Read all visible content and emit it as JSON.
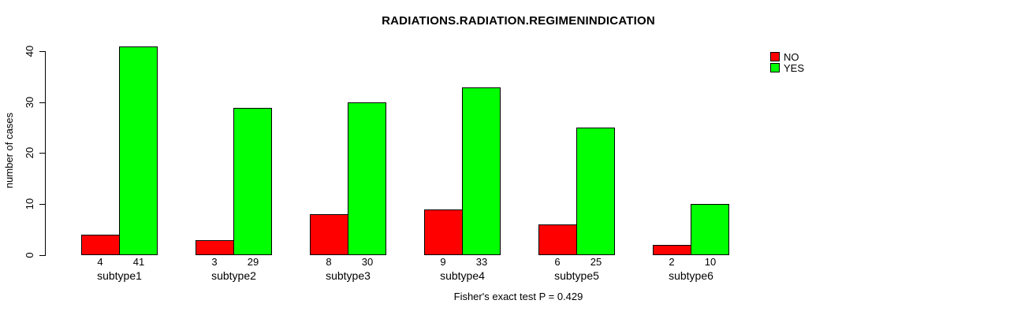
{
  "chart_data": {
    "type": "bar",
    "title": "RADIATIONS.RADIATION.REGIMENINDICATION",
    "ylabel": "number of cases",
    "xlabel": "",
    "categories": [
      "subtype1",
      "subtype2",
      "subtype3",
      "subtype4",
      "subtype5",
      "subtype6"
    ],
    "series": [
      {
        "name": "NO",
        "color": "#FF0000",
        "values": [
          4,
          3,
          8,
          9,
          6,
          2
        ]
      },
      {
        "name": "YES",
        "color": "#00FF00",
        "values": [
          41,
          29,
          30,
          33,
          25,
          10
        ]
      }
    ],
    "bar_value_labels": {
      "NO": [
        "4",
        "3",
        "8",
        "9",
        "6",
        "2"
      ],
      "YES": [
        "41",
        "29",
        "30",
        "33",
        "25",
        "10"
      ]
    },
    "yticks": [
      "0",
      "10",
      "20",
      "30",
      "40"
    ],
    "ylim": [
      0,
      40
    ],
    "grid": false,
    "legend_position": "top-right",
    "legend": [
      {
        "label": "NO",
        "color": "#FF0000"
      },
      {
        "label": "YES",
        "color": "#00FF00"
      }
    ],
    "annotation": "Fisher's exact test P = 0.429",
    "background_color": "#FFFFFF",
    "axis_color": "#000000"
  }
}
